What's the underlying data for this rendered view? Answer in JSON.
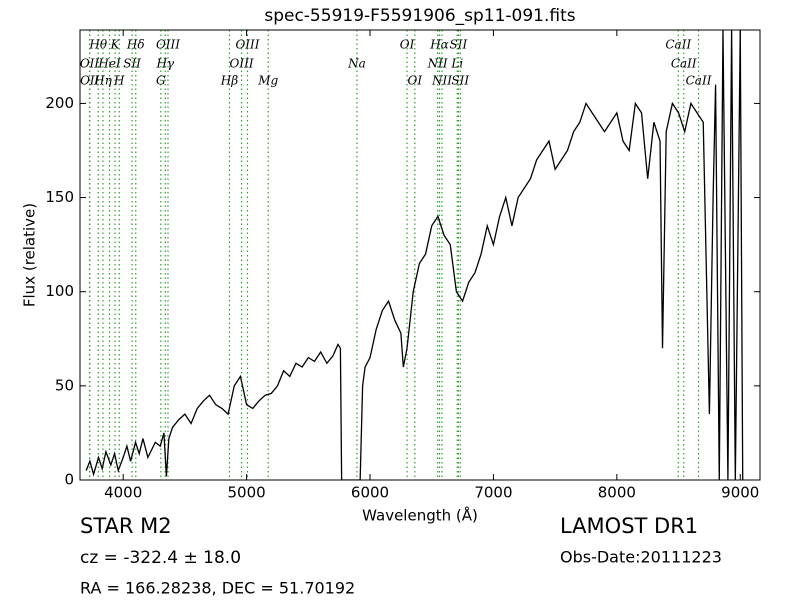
{
  "chart_data": {
    "type": "line",
    "title": "spec-55919-F5591906_sp11-091.fits",
    "x_label": "Wavelength (Å)",
    "y_label": "Flux (relative)",
    "xlim": [
      3650,
      9160
    ],
    "ylim": [
      0,
      239
    ],
    "xticks": [
      4000,
      5000,
      6000,
      7000,
      8000,
      9000
    ],
    "yticks": [
      0,
      50,
      100,
      150,
      200
    ],
    "series": [
      {
        "color": "#000000",
        "x": [
          3700,
          3730,
          3760,
          3800,
          3830,
          3860,
          3900,
          3930,
          3960,
          4000,
          4030,
          4060,
          4100,
          4130,
          4160,
          4200,
          4230,
          4260,
          4300,
          4330,
          4350,
          4370,
          4400,
          4450,
          4500,
          4550,
          4600,
          4650,
          4700,
          4750,
          4800,
          4850,
          4900,
          4950,
          5000,
          5050,
          5100,
          5150,
          5200,
          5250,
          5300,
          5350,
          5400,
          5450,
          5500,
          5550,
          5600,
          5650,
          5700,
          5740,
          5760,
          5770,
          5920,
          5940,
          5960,
          6000,
          6050,
          6100,
          6150,
          6200,
          6250,
          6270,
          6300,
          6350,
          6400,
          6450,
          6500,
          6550,
          6600,
          6650,
          6700,
          6750,
          6800,
          6850,
          6900,
          6950,
          7000,
          7050,
          7100,
          7150,
          7200,
          7250,
          7300,
          7350,
          7400,
          7450,
          7500,
          7550,
          7600,
          7650,
          7700,
          7750,
          7800,
          7850,
          7900,
          7950,
          8000,
          8050,
          8100,
          8150,
          8200,
          8250,
          8300,
          8350,
          8370,
          8400,
          8450,
          8500,
          8550,
          8600,
          8650,
          8700,
          8750,
          8780,
          8800,
          8830,
          8860,
          8900,
          8930,
          8960,
          9000,
          9020
        ],
        "values": [
          5,
          10,
          3,
          12,
          6,
          15,
          8,
          14,
          5,
          12,
          18,
          10,
          20,
          14,
          22,
          12,
          16,
          20,
          18,
          25,
          2,
          22,
          28,
          32,
          35,
          30,
          38,
          42,
          45,
          40,
          38,
          35,
          50,
          55,
          40,
          38,
          42,
          45,
          46,
          50,
          58,
          55,
          62,
          60,
          65,
          63,
          68,
          62,
          66,
          72,
          70,
          0,
          0,
          50,
          60,
          65,
          80,
          90,
          95,
          85,
          78,
          60,
          70,
          100,
          115,
          120,
          135,
          140,
          130,
          125,
          100,
          95,
          105,
          110,
          120,
          135,
          125,
          140,
          150,
          135,
          150,
          155,
          160,
          170,
          175,
          180,
          165,
          170,
          175,
          185,
          190,
          200,
          195,
          190,
          185,
          190,
          195,
          180,
          175,
          200,
          195,
          160,
          190,
          180,
          70,
          185,
          200,
          195,
          185,
          200,
          195,
          190,
          35,
          150,
          210,
          0,
          239,
          0,
          239,
          0,
          239,
          0
        ]
      }
    ],
    "spectral_lines": [
      {
        "name": "Hθ",
        "wavelength": 3798
      },
      {
        "name": "K",
        "wavelength": 3934
      },
      {
        "name": "Hδ",
        "wavelength": 4102
      },
      {
        "name": "OIII",
        "wavelength": 4363
      },
      {
        "name": "OIII",
        "wavelength": 5007
      },
      {
        "name": "OI",
        "wavelength": 6300
      },
      {
        "name": "Hα",
        "wavelength": 6563
      },
      {
        "name": "SII",
        "wavelength": 6716
      },
      {
        "name": "CaII",
        "wavelength": 8498
      },
      {
        "name": "OII",
        "wavelength": 3727
      },
      {
        "name": "HeI",
        "wavelength": 3889
      },
      {
        "name": "SII",
        "wavelength": 4072
      },
      {
        "name": "Hγ",
        "wavelength": 4341
      },
      {
        "name": "OIII",
        "wavelength": 4959
      },
      {
        "name": "Na",
        "wavelength": 5894
      },
      {
        "name": "NII",
        "wavelength": 6548
      },
      {
        "name": "Li",
        "wavelength": 6707
      },
      {
        "name": "CaII",
        "wavelength": 8542
      },
      {
        "name": "OII",
        "wavelength": 3729
      },
      {
        "name": "Hη",
        "wavelength": 3836
      },
      {
        "name": "H",
        "wavelength": 3968
      },
      {
        "name": "G",
        "wavelength": 4305
      },
      {
        "name": "Hβ",
        "wavelength": 4861
      },
      {
        "name": "Mg",
        "wavelength": 5175
      },
      {
        "name": "OI",
        "wavelength": 6363
      },
      {
        "name": "NII",
        "wavelength": 6583
      },
      {
        "name": "SII",
        "wavelength": 6731
      },
      {
        "name": "CaII",
        "wavelength": 8662
      }
    ],
    "spectral_line_color": "#2ca02c",
    "annotations": [
      "STAR   M2",
      "cz = -322.4  ± 18.0",
      "RA = 166.28238, DEC = 51.70192",
      "LAMOST DR1",
      "Obs-Date:20111223"
    ]
  }
}
